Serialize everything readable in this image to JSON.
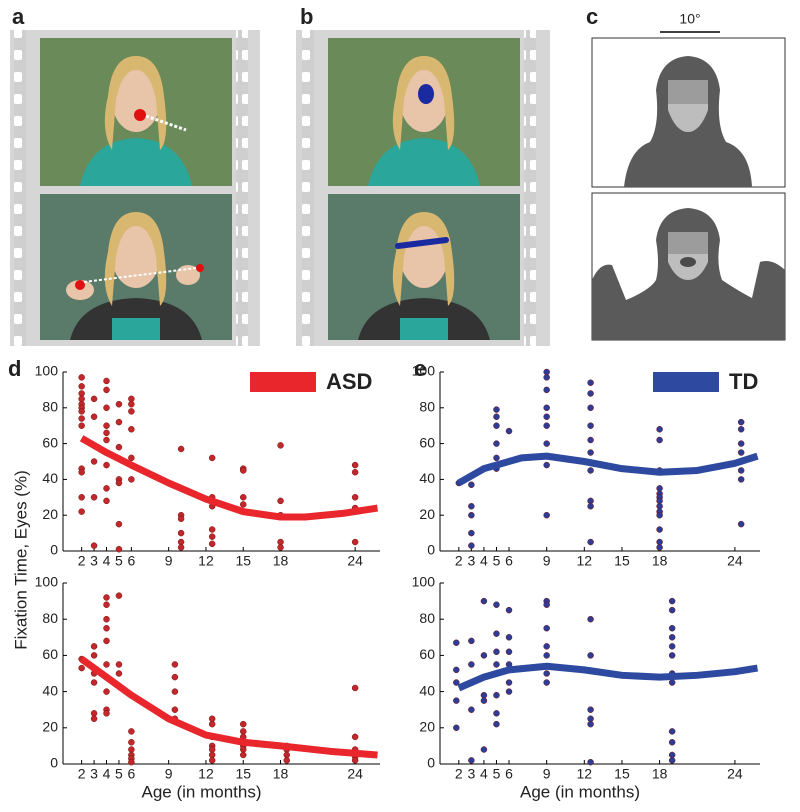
{
  "panel_labels": [
    "a",
    "b",
    "c",
    "d",
    "e"
  ],
  "scale_bar_label": "10°",
  "y_axis_label": "Fixation Time, Eyes (%)",
  "chart_data": [
    {
      "type": "scatter",
      "series": [
        {
          "name": "ASD",
          "color": "#c0282b",
          "x": [
            2,
            2,
            2,
            2,
            2,
            2,
            2,
            2,
            2,
            2,
            2,
            2,
            2,
            3,
            3,
            3,
            3,
            3,
            4,
            4,
            4,
            4,
            4,
            4,
            4,
            4,
            4,
            4,
            5,
            5,
            5,
            5,
            5,
            5,
            5,
            6,
            6,
            6,
            6,
            6,
            6,
            10,
            10,
            10,
            10,
            10,
            10,
            12.5,
            12.5,
            12.5,
            12.5,
            12.5,
            12.5,
            15,
            15,
            15,
            15,
            15,
            18,
            18,
            18,
            18,
            18,
            24,
            24,
            24,
            24,
            24
          ],
          "values": [
            97,
            92,
            88,
            85,
            82,
            80,
            78,
            74,
            70,
            46,
            44,
            30,
            22,
            85,
            75,
            50,
            30,
            3,
            95,
            90,
            80,
            70,
            66,
            62,
            55,
            48,
            35,
            28,
            82,
            72,
            58,
            40,
            38,
            15,
            1,
            85,
            82,
            78,
            68,
            52,
            40,
            57,
            20,
            18,
            10,
            5,
            2,
            52,
            30,
            25,
            12,
            8,
            4,
            46,
            45,
            30,
            26,
            22,
            59,
            28,
            20,
            5,
            2,
            48,
            44,
            30,
            24,
            5
          ]
        }
      ],
      "fit": {
        "color": "#e8262b",
        "x": [
          2,
          4,
          6,
          9,
          12,
          15,
          18,
          20,
          23,
          25.8
        ],
        "values": [
          63,
          55,
          48,
          38,
          29,
          22,
          19,
          19,
          21,
          24
        ]
      },
      "xlim": [
        0.5,
        26
      ],
      "ylim": [
        0,
        100
      ],
      "xticks": [
        2,
        3,
        4,
        5,
        6,
        9,
        12,
        15,
        18,
        24
      ],
      "yticks": [
        0,
        20,
        40,
        60,
        80,
        100
      ]
    },
    {
      "type": "scatter",
      "series": [
        {
          "name": "TD",
          "color": "#2b3d96",
          "x": [
            2,
            3,
            3,
            3,
            3,
            3,
            5,
            5,
            5,
            5,
            5,
            5,
            6,
            9,
            9,
            9,
            9,
            9,
            9,
            9,
            9,
            9,
            12.5,
            12.5,
            12.5,
            12.5,
            12.5,
            12.5,
            12.5,
            12.5,
            12.5,
            12.5,
            18,
            18,
            18,
            18,
            18,
            18,
            18,
            18,
            18,
            18,
            18,
            18,
            18,
            24.5,
            24.5,
            24.5,
            24.5,
            24.5,
            24.5,
            24.5,
            24.5
          ],
          "values": [
            38,
            37,
            25,
            20,
            10,
            3,
            79,
            75,
            70,
            60,
            52,
            46,
            67,
            100,
            97,
            90,
            80,
            75,
            70,
            60,
            48,
            20,
            94,
            88,
            80,
            70,
            62,
            55,
            45,
            28,
            25,
            5,
            68,
            62,
            45,
            35,
            32,
            30,
            28,
            25,
            22,
            20,
            12,
            5,
            2,
            72,
            68,
            60,
            55,
            50,
            45,
            40,
            15
          ]
        }
      ],
      "fit": {
        "color": "#2e4aa0",
        "x": [
          2,
          4,
          7,
          9,
          12,
          15,
          18,
          21,
          24,
          25.8
        ],
        "values": [
          38,
          46,
          52,
          53,
          50,
          46,
          44,
          45,
          49,
          53
        ]
      },
      "xlim": [
        0.5,
        26
      ],
      "ylim": [
        0,
        100
      ],
      "xticks": [
        2,
        3,
        4,
        5,
        6,
        9,
        12,
        15,
        18,
        24
      ],
      "yticks": [
        0,
        20,
        40,
        60,
        80,
        100
      ]
    },
    {
      "type": "scatter",
      "series": [
        {
          "color": "#c0282b",
          "x": [
            2,
            2,
            3,
            3,
            3,
            3,
            3,
            3,
            4,
            4,
            4,
            4,
            4,
            4,
            4,
            4,
            4,
            5,
            5,
            5,
            6,
            6,
            6,
            6,
            6,
            6,
            9.5,
            9.5,
            9.5,
            9.5,
            9.5,
            12.5,
            12.5,
            12.5,
            12.5,
            12.5,
            12.5,
            12.5,
            15,
            15,
            15,
            15,
            15,
            15,
            15,
            18.5,
            18.5,
            18.5,
            18.5,
            24,
            24,
            24,
            24,
            24
          ],
          "values": [
            58,
            53,
            65,
            60,
            50,
            45,
            28,
            25,
            92,
            88,
            80,
            75,
            68,
            55,
            40,
            30,
            28,
            93,
            55,
            50,
            18,
            12,
            8,
            5,
            3,
            1,
            55,
            48,
            40,
            30,
            25,
            25,
            22,
            15,
            10,
            8,
            5,
            2,
            22,
            18,
            15,
            12,
            10,
            8,
            5,
            10,
            8,
            5,
            2,
            42,
            15,
            8,
            4,
            2
          ]
        }
      ],
      "fit": {
        "color": "#e8262b",
        "x": [
          2,
          4,
          6,
          9,
          12,
          15,
          18,
          22,
          25.8
        ],
        "values": [
          58,
          48,
          38,
          25,
          16,
          12,
          10,
          7,
          5
        ]
      },
      "xlim": [
        0.5,
        26
      ],
      "ylim": [
        0,
        100
      ],
      "xticks": [
        2,
        3,
        4,
        5,
        6,
        9,
        12,
        15,
        18,
        24
      ],
      "yticks": [
        0,
        20,
        40,
        60,
        80,
        100
      ],
      "xlabel": "Age (in months)"
    },
    {
      "type": "scatter",
      "series": [
        {
          "color": "#2b3d96",
          "x": [
            1.8,
            1.8,
            1.8,
            1.8,
            1.8,
            3,
            3,
            3,
            3,
            3,
            4,
            4,
            4,
            4,
            4,
            4,
            5,
            5,
            5,
            5,
            5,
            5,
            5,
            5,
            6,
            6,
            6,
            6,
            6,
            6,
            9,
            9,
            9,
            9,
            9,
            9,
            9,
            12.5,
            12.5,
            12.5,
            12.5,
            12.5,
            12.5,
            19,
            19,
            19,
            19,
            19,
            19,
            19,
            19,
            19,
            19,
            19,
            19,
            19
          ],
          "values": [
            67,
            52,
            45,
            35,
            20,
            68,
            55,
            45,
            30,
            2,
            90,
            60,
            48,
            38,
            35,
            8,
            88,
            72,
            62,
            55,
            50,
            38,
            28,
            22,
            85,
            70,
            62,
            55,
            45,
            40,
            90,
            88,
            75,
            65,
            60,
            50,
            45,
            80,
            60,
            30,
            25,
            22,
            1,
            90,
            85,
            75,
            70,
            65,
            60,
            50,
            48,
            45,
            18,
            12,
            5,
            2
          ]
        }
      ],
      "fit": {
        "color": "#2e4aa0",
        "x": [
          2,
          4,
          6,
          9,
          12,
          15,
          18,
          21,
          24,
          25.8
        ],
        "values": [
          42,
          48,
          52,
          54,
          52,
          49,
          48,
          49,
          51,
          53
        ]
      },
      "xlim": [
        0.5,
        26
      ],
      "ylim": [
        0,
        100
      ],
      "xticks": [
        2,
        3,
        4,
        5,
        6,
        9,
        12,
        15,
        18,
        24
      ],
      "yticks": [
        0,
        20,
        40,
        60,
        80,
        100
      ],
      "xlabel": "Age (in months)"
    }
  ]
}
